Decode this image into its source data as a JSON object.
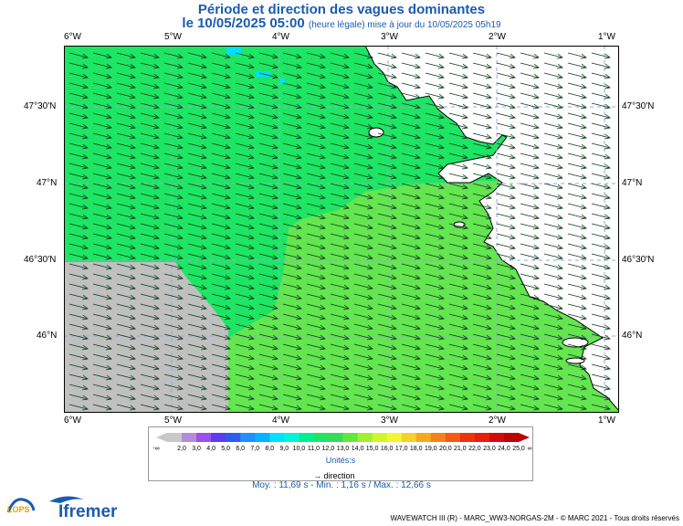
{
  "title": "Période et direction des vagues dominantes",
  "subtitle_date": "le 10/05/2025 05:00",
  "subtitle_note": "(heure légale) mise à jour du 10/05/2025 05h19",
  "lon_ticks": [
    "6°W",
    "5°W",
    "4°W",
    "3°W",
    "2°W",
    "1°W"
  ],
  "lat_ticks": [
    "47°30'N",
    "47°N",
    "46°30'N",
    "46°N"
  ],
  "legend": {
    "labels": [
      "-∞",
      "2,0",
      "3,0",
      "4,0",
      "5,0",
      "6,0",
      "7,0",
      "8,0",
      "9,0",
      "10,0",
      "11,0",
      "12,0",
      "13,0",
      "14,0",
      "15,0",
      "16,0",
      "17,0",
      "18,0",
      "19,0",
      "20,0",
      "21,0",
      "22,0",
      "23,0",
      "24,0",
      "25,0",
      "∞"
    ],
    "colors": [
      "#c8c8c8",
      "#b48cd8",
      "#9b4ff0",
      "#5a3cf0",
      "#2f5cf0",
      "#1e90ff",
      "#00b4ff",
      "#00e0ff",
      "#00f5d8",
      "#00f090",
      "#1ee664",
      "#32dc5a",
      "#64e63c",
      "#a0f032",
      "#d2f528",
      "#f5f532",
      "#f5d228",
      "#f5aa1e",
      "#f58219",
      "#f55a14",
      "#f0320f",
      "#e61e0a",
      "#d20a0a",
      "#be0000"
    ],
    "units": "Unités:s",
    "direction_label": "direction"
  },
  "stats": "Moy. : 11,69 s   -   Min. : 1,16 s / Max. : 12,66 s",
  "credits": "WAVEWATCH III (R) - MARC_WW3-NORGAS-2M - © MARC 2021 - Tous droits réservés",
  "logos": {
    "lops": "LOPS",
    "ifremer": "Ifremer"
  },
  "colors": {
    "land": "#ffffff",
    "sea_high": "#64e650",
    "sea_low": "#1ee664",
    "no_data": "#c0c0c0",
    "accent": "#1a5bb0"
  }
}
